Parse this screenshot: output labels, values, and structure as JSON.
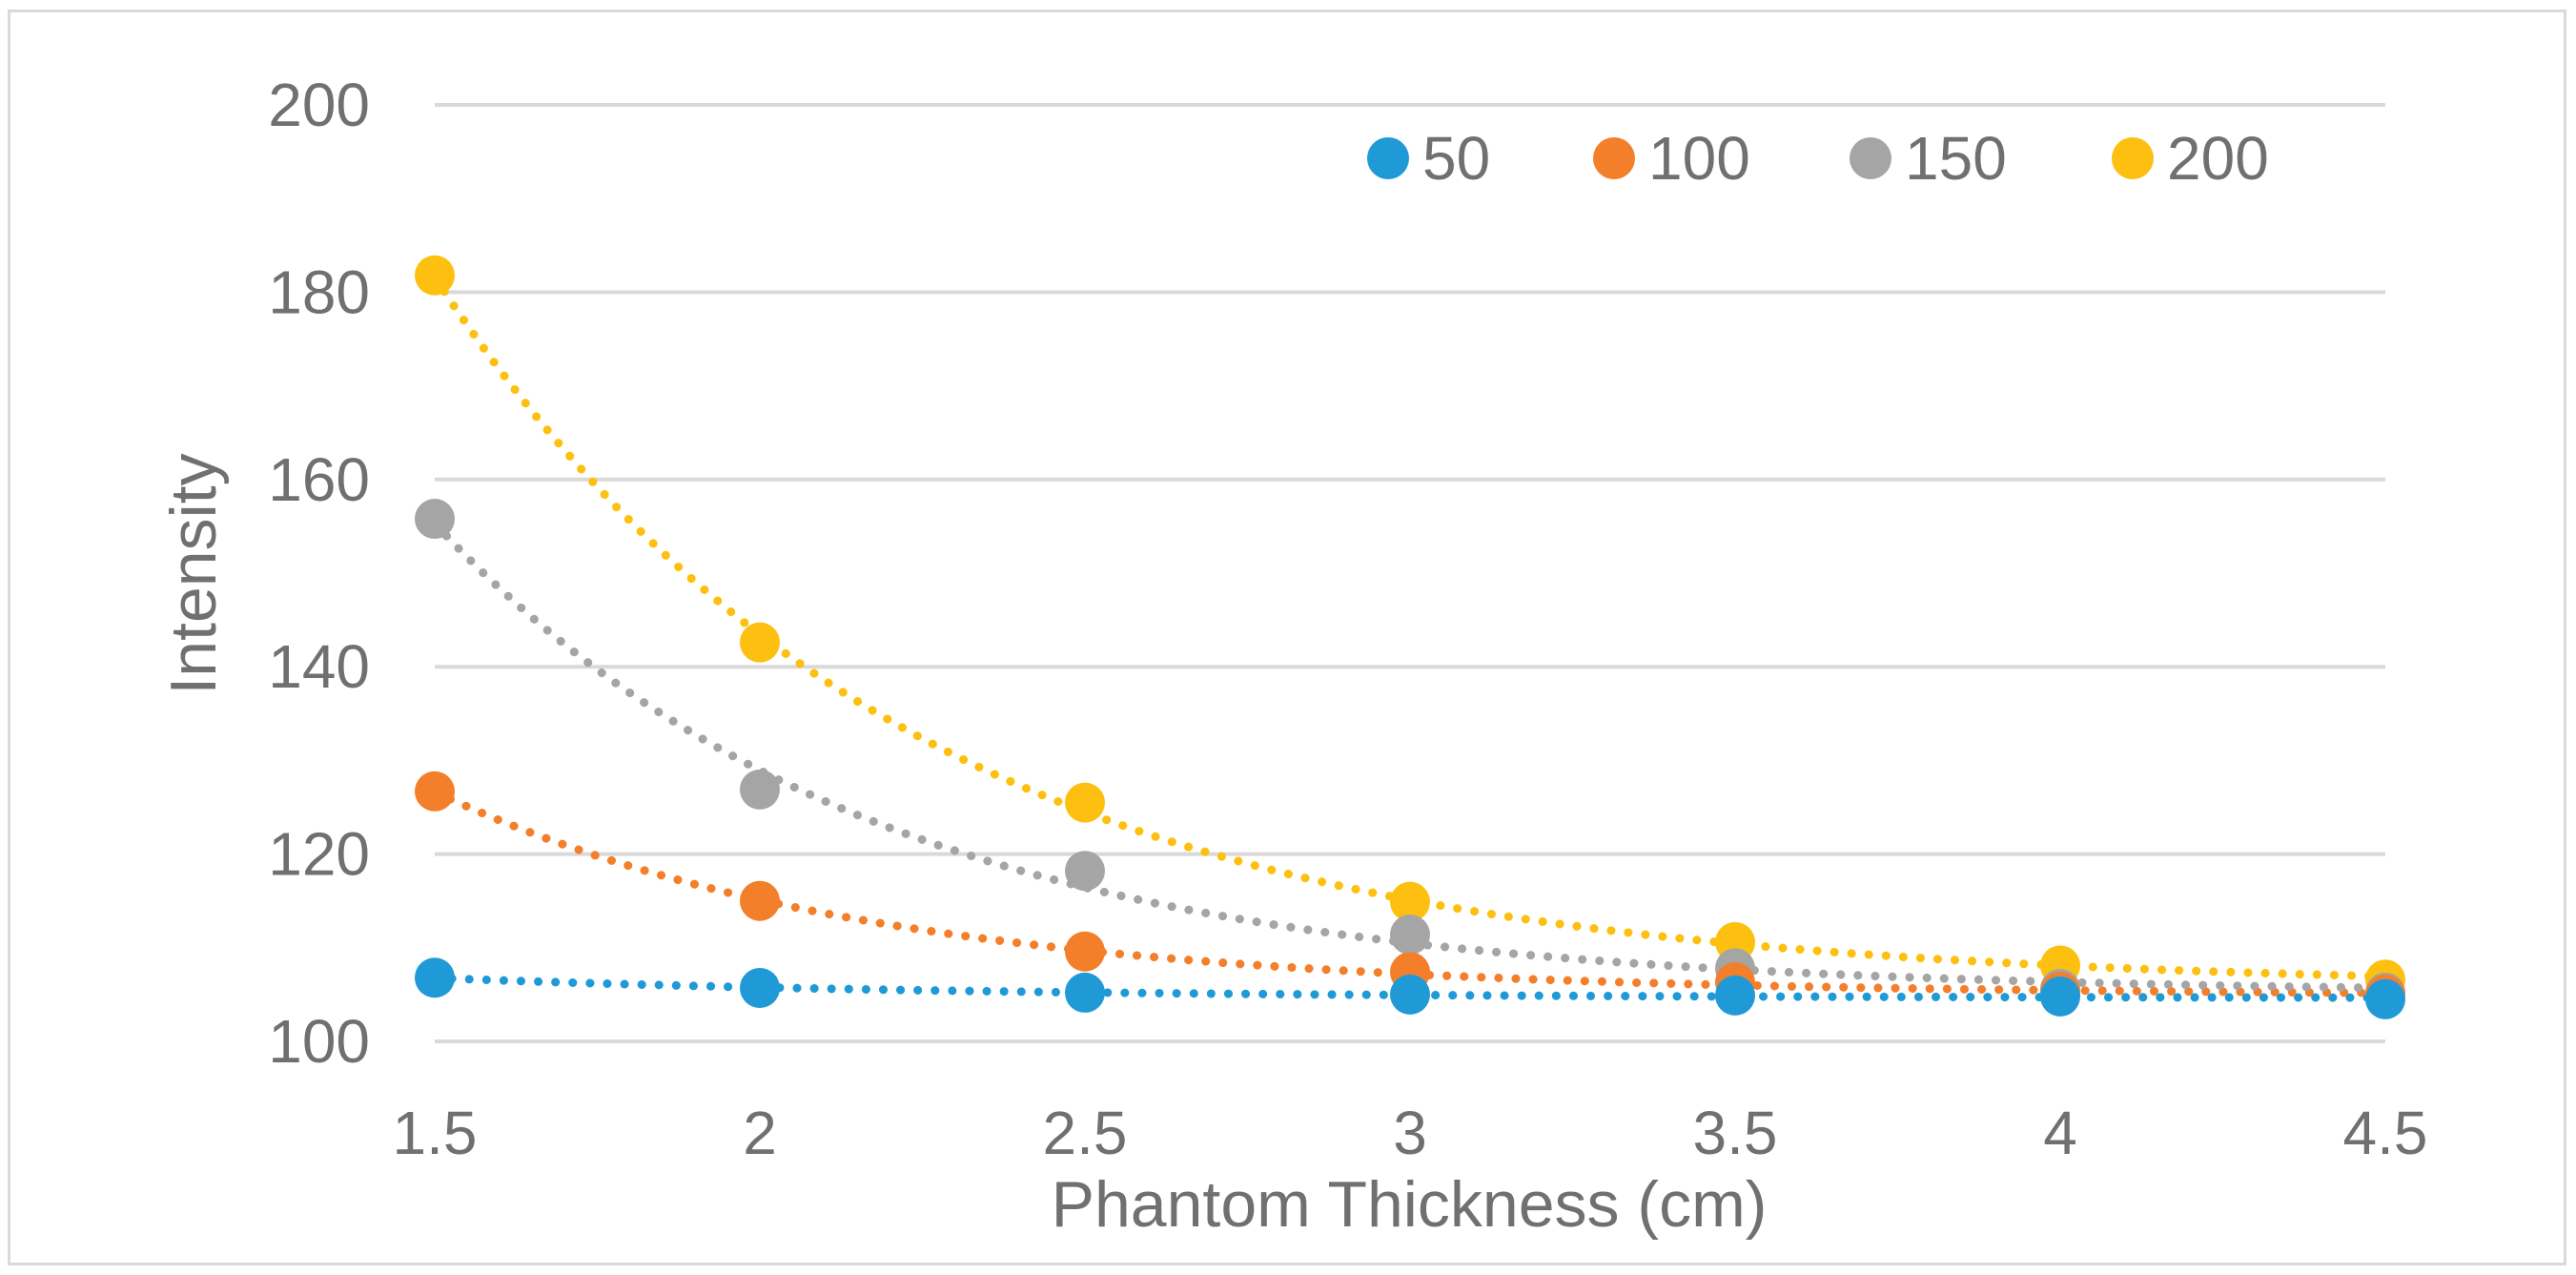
{
  "chart_data": {
    "type": "scatter",
    "xlabel": "Phantom Thickness (cm)",
    "ylabel": "Intensity",
    "xlim": [
      1.5,
      4.5
    ],
    "ylim": [
      100,
      200
    ],
    "xticks": [
      "1.5",
      "2",
      "2.5",
      "3",
      "3.5",
      "4",
      "4.5"
    ],
    "yticks": [
      "100",
      "120",
      "140",
      "160",
      "180",
      "200"
    ],
    "grid": true,
    "legend_position": "top-right",
    "trendline": "dotted exponential",
    "x": [
      1.5,
      2,
      2.5,
      3,
      3.5,
      4,
      4.5
    ],
    "series": [
      {
        "name": "50",
        "color": "#1f9ad6",
        "values": [
          106.8,
          105.7,
          105.2,
          105.0,
          104.9,
          104.8,
          104.5
        ]
      },
      {
        "name": "100",
        "color": "#f47f2b",
        "values": [
          126.7,
          115.0,
          109.6,
          107.4,
          106.3,
          105.3,
          105.0
        ]
      },
      {
        "name": "150",
        "color": "#a5a5a5",
        "values": [
          155.8,
          126.9,
          118.2,
          111.4,
          107.8,
          105.6,
          105.2
        ]
      },
      {
        "name": "200",
        "color": "#fdc010",
        "values": [
          181.8,
          142.6,
          125.5,
          114.9,
          110.6,
          108.1,
          106.6
        ]
      }
    ]
  }
}
